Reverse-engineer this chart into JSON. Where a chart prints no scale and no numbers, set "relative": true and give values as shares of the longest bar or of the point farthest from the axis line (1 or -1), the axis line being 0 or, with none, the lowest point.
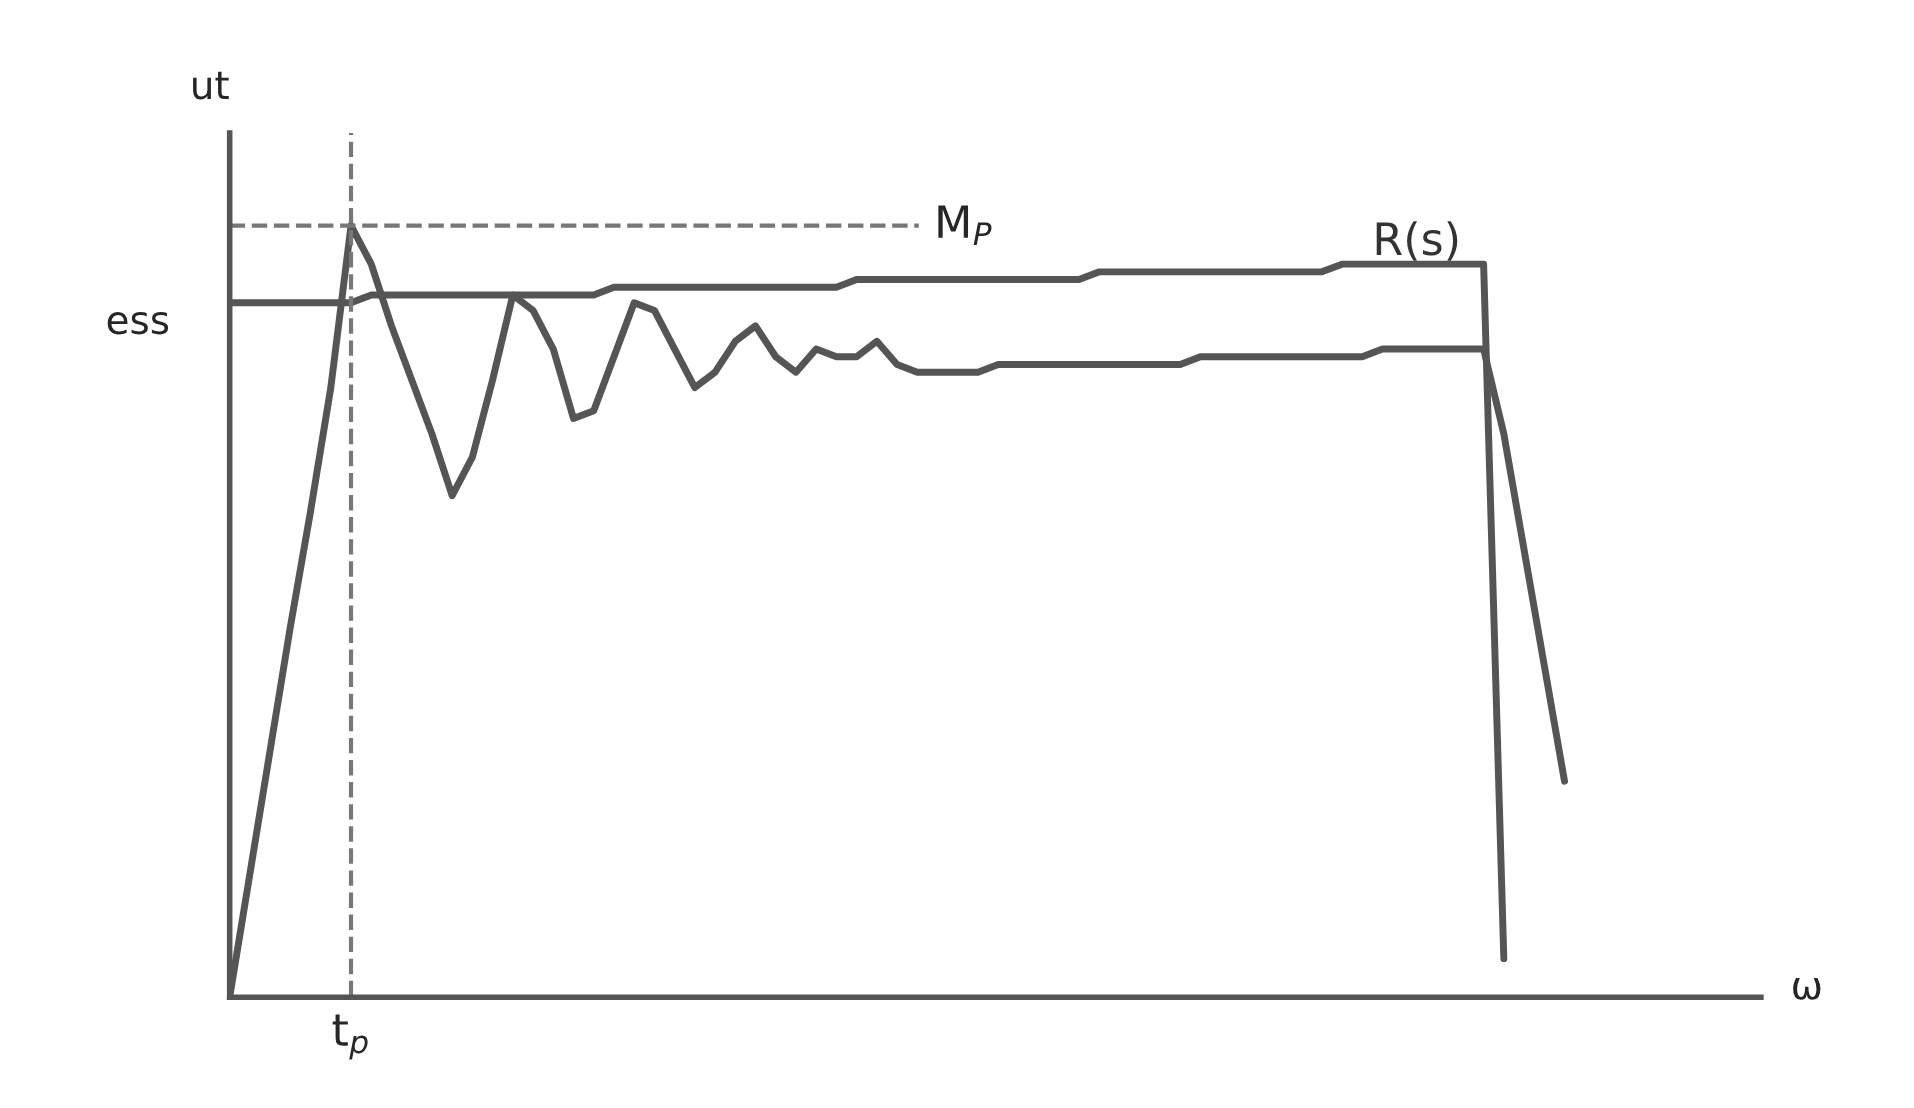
{
  "chart_data": {
    "type": "line",
    "relative": true,
    "ylabel": "ut",
    "categories": [
      null,
      null,
      null,
      null,
      null,
      null,
      null,
      null,
      null,
      null,
      null,
      null,
      null,
      null,
      null,
      null,
      null,
      null,
      null,
      null,
      null,
      null,
      null,
      null,
      null,
      null,
      null,
      null,
      null,
      null,
      null,
      null,
      null,
      null,
      null,
      null,
      null,
      null,
      null,
      null,
      null,
      null,
      null,
      null,
      null,
      null,
      null,
      null,
      null,
      null,
      null,
      null,
      null,
      null,
      null,
      null,
      null,
      null,
      null,
      null,
      null,
      null,
      null,
      null,
      null,
      null,
      null
    ],
    "series": [
      {
        "color": "#555555",
        "values": [
          0,
          0.16,
          0.32,
          0.48,
          0.63,
          0.79,
          1.0,
          0.95,
          0.87,
          0.8,
          0.73,
          0.65,
          0.7,
          0.8,
          0.91,
          0.89,
          0.84,
          0.75,
          0.76,
          0.83,
          0.9,
          0.89,
          0.84,
          0.79,
          0.81,
          0.85,
          0.87,
          0.83,
          0.81,
          0.84,
          0.83,
          0.83,
          0.85,
          0.82,
          0.81,
          0.81,
          0.81,
          0.81,
          0.82,
          0.82,
          0.82,
          0.82,
          0.82,
          0.82,
          0.82,
          0.82,
          0.82,
          0.82,
          0.83,
          0.83,
          0.83,
          0.83,
          0.83,
          0.83,
          0.83,
          0.83,
          0.83,
          0.84,
          0.84,
          0.84,
          0.84,
          0.84,
          0.84,
          0.73,
          0.58,
          0.43,
          0.28
        ]
      },
      {
        "name": "R(s)",
        "color": "#555555",
        "values": [
          0.9,
          0.9,
          0.9,
          0.9,
          0.9,
          0.9,
          0.9,
          0.91,
          0.91,
          0.91,
          0.91,
          0.91,
          0.91,
          0.91,
          0.91,
          0.91,
          0.91,
          0.91,
          0.91,
          0.92,
          0.92,
          0.92,
          0.92,
          0.92,
          0.92,
          0.92,
          0.92,
          0.92,
          0.92,
          0.92,
          0.92,
          0.93,
          0.93,
          0.93,
          0.93,
          0.93,
          0.93,
          0.93,
          0.93,
          0.93,
          0.93,
          0.93,
          0.93,
          0.94,
          0.94,
          0.94,
          0.94,
          0.94,
          0.94,
          0.94,
          0.94,
          0.94,
          0.94,
          0.94,
          0.94,
          0.95,
          0.95,
          0.95,
          0.95,
          0.95,
          0.95,
          0.95,
          0.95,
          0.05,
          null,
          null,
          null
        ]
      }
    ],
    "ref_lines": [
      {
        "axis": "y",
        "value": 1.0,
        "label": "M$_{P}$",
        "line_style": "dashed",
        "color": "#777777"
      },
      {
        "axis": "x",
        "label": "t$_{p}$",
        "line_style": "dashed",
        "color": "#777777"
      }
    ],
    "annotations": [
      "ess",
      "ω"
    ],
    "legend": false,
    "marker": "none",
    "line_style": "solid"
  }
}
